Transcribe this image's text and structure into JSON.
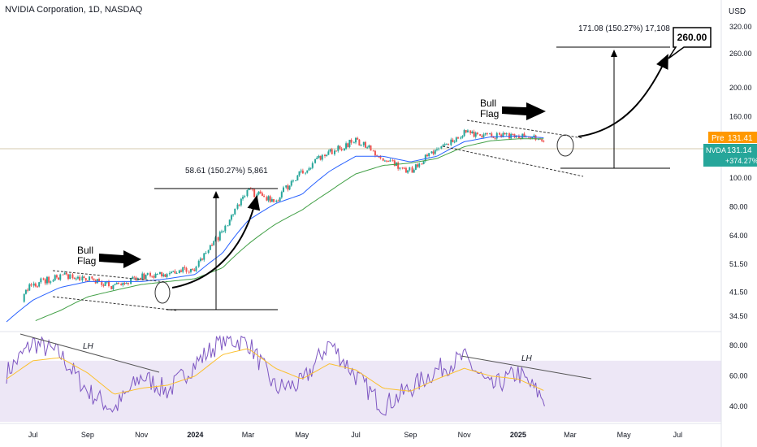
{
  "header": {
    "title": "NVIDIA Corporation, 1D, NASDAQ",
    "currency": "USD"
  },
  "price_labels": {
    "pre": {
      "tag": "Pre",
      "value": "131.41",
      "color": "#ff9800"
    },
    "last": {
      "tag": "NVDA",
      "value": "131.14",
      "change": "+374.27%",
      "color": "#26a69a"
    }
  },
  "colors": {
    "up": "#26a69a",
    "down": "#ef5350",
    "ma_fast": "#2962ff",
    "ma_slow": "#43a047",
    "rsi_line": "#7e57c2",
    "rsi_ma": "#fbc02d",
    "rsi_band": "#ede7f6"
  },
  "annotations": {
    "bull_flag_1": "Bull\nFlag",
    "bull_flag_2": "Bull\nFlag",
    "measure_1": "58.61 (150.27%) 5,861",
    "measure_2": "171.08 (150.27%) 17,108",
    "target": "260.00",
    "lh_1": "LH",
    "lh_2": "LH"
  },
  "chart_data": [
    {
      "type": "line",
      "panel": "price",
      "scale": "log",
      "ylim": [
        31,
        360
      ],
      "y_ticks": [
        34.5,
        41.5,
        51.5,
        64.0,
        80.0,
        100.0,
        160.0,
        200.0,
        260.0,
        320.0
      ],
      "y_tick_labels": [
        "34.50",
        "41.50",
        "51.50",
        "64.00",
        "80.00",
        "100.00",
        "160.00",
        "200.00",
        "260.00",
        "320.00"
      ],
      "x_tick_labels": [
        "Jul",
        "Sep",
        "Nov",
        "2024",
        "Mar",
        "May",
        "Jul",
        "Sep",
        "Nov",
        "2025",
        "Mar",
        "May",
        "Jul"
      ],
      "x": [
        "2023-06-01",
        "2023-07-01",
        "2023-08-01",
        "2023-09-01",
        "2023-10-01",
        "2023-11-01",
        "2023-12-01",
        "2024-01-01",
        "2024-02-01",
        "2024-03-01",
        "2024-04-01",
        "2024-05-01",
        "2024-06-01",
        "2024-07-01",
        "2024-08-01",
        "2024-09-01",
        "2024-10-01",
        "2024-11-01",
        "2024-12-01",
        "2025-01-01",
        "2025-02-01"
      ],
      "series": [
        {
          "key": "price",
          "values": [
            38.5,
            44,
            47,
            46,
            43,
            47,
            48,
            49.5,
            66,
            90,
            84,
            105,
            122,
            133,
            117,
            105,
            125,
            142,
            138,
            140,
            131.14
          ]
        },
        {
          "key": "ma_fast",
          "values": [
            33,
            39,
            43,
            45,
            45,
            45,
            46,
            47.5,
            56,
            72,
            82,
            88,
            105,
            118,
            118,
            113,
            118,
            132,
            137,
            138,
            136
          ]
        },
        {
          "key": "ma_slow",
          "values": [
            null,
            33,
            36,
            40,
            42,
            44,
            45,
            46,
            50,
            60,
            70,
            78,
            90,
            103,
            110,
            112,
            116,
            127,
            133,
            135,
            135
          ]
        }
      ]
    },
    {
      "type": "line",
      "panel": "rsi",
      "ylim": [
        30,
        88
      ],
      "y_ticks": [
        40,
        60,
        80
      ],
      "y_tick_labels": [
        "40.00",
        "60.00",
        "80.00"
      ],
      "band": [
        30,
        70
      ],
      "x": [
        "2023-06-01",
        "2023-07-01",
        "2023-08-01",
        "2023-09-01",
        "2023-10-01",
        "2023-11-01",
        "2023-12-01",
        "2024-01-01",
        "2024-02-01",
        "2024-03-01",
        "2024-04-01",
        "2024-05-01",
        "2024-06-01",
        "2024-07-01",
        "2024-08-01",
        "2024-09-01",
        "2024-10-01",
        "2024-11-01",
        "2024-12-01",
        "2025-01-01",
        "2025-02-01"
      ],
      "series": [
        {
          "key": "rsi",
          "values": [
            62,
            82,
            74,
            50,
            38,
            60,
            50,
            68,
            84,
            82,
            52,
            55,
            82,
            60,
            40,
            52,
            64,
            72,
            52,
            62,
            44
          ]
        },
        {
          "key": "rsi_ma",
          "values": [
            58,
            70,
            72,
            62,
            48,
            52,
            54,
            60,
            74,
            78,
            65,
            58,
            68,
            64,
            52,
            50,
            58,
            65,
            60,
            58,
            50
          ]
        }
      ]
    }
  ]
}
